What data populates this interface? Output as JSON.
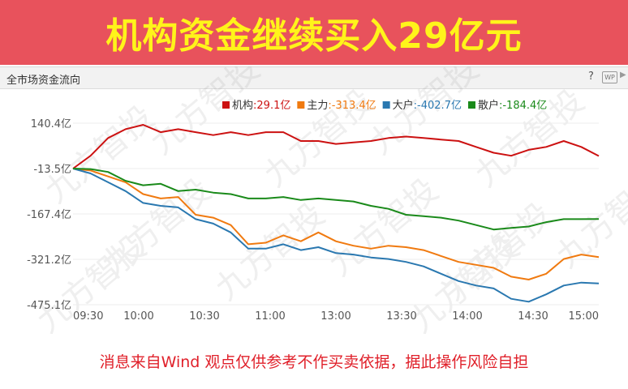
{
  "banner": {
    "title": "机构资金继续买入29亿元"
  },
  "panel": {
    "title": "全市场资金流向",
    "help": "?",
    "wp": "WP"
  },
  "footer": {
    "text": "消息来自Wind  观点仅供参考不作买卖依据，据此操作风险自担"
  },
  "watermark": "九方智投",
  "colors": {
    "banner_bg": "#e8525c",
    "banner_text": "#fff41a",
    "footer_text": "#e0202a"
  },
  "chart_data": {
    "type": "line",
    "ylim": [
      -475.1,
      140.4
    ],
    "y_ticks": [
      "140.4亿",
      "-13.5亿",
      "-167.4亿",
      "-321.2亿",
      "-475.1亿"
    ],
    "x_ticks": [
      "09:30",
      "10:00",
      "10:30",
      "11:00",
      "13:00",
      "13:30",
      "14:00",
      "14:30",
      "15:00"
    ],
    "legend_position": "top-right",
    "series": [
      {
        "name": "机构",
        "label": ":29.1亿",
        "color": "#cc1111",
        "values": [
          -13.5,
          30,
          90,
          120,
          135,
          110,
          120,
          110,
          100,
          110,
          100,
          110,
          110,
          80,
          80,
          70,
          75,
          80,
          90,
          95,
          90,
          85,
          80,
          60,
          40,
          30,
          50,
          60,
          80,
          60,
          29.1
        ]
      },
      {
        "name": "主力",
        "label": ":-313.4亿",
        "color": "#f07a10",
        "values": [
          -13.5,
          -20,
          -40,
          -60,
          -100,
          -115,
          -110,
          -170,
          -180,
          -205,
          -270,
          -265,
          -240,
          -260,
          -230,
          -260,
          -275,
          -285,
          -275,
          -280,
          -290,
          -310,
          -330,
          -340,
          -350,
          -380,
          -390,
          -370,
          -320,
          -305,
          -313.4
        ]
      },
      {
        "name": "大户",
        "label": ":-402.7亿",
        "color": "#2a78b0",
        "values": [
          -13.5,
          -30,
          -60,
          -90,
          -130,
          -140,
          -145,
          -185,
          -200,
          -230,
          -285,
          -285,
          -270,
          -290,
          -280,
          -300,
          -305,
          -315,
          -320,
          -330,
          -345,
          -370,
          -395,
          -410,
          -420,
          -455,
          -465,
          -440,
          -410,
          -400,
          -402.7
        ]
      },
      {
        "name": "散户",
        "label": ":-184.4亿",
        "color": "#1a8a1a",
        "values": [
          -13.5,
          -15,
          -25,
          -55,
          -70,
          -65,
          -90,
          -85,
          -95,
          -100,
          -115,
          -115,
          -110,
          -120,
          -115,
          -120,
          -125,
          -140,
          -150,
          -170,
          -175,
          -180,
          -190,
          -205,
          -220,
          -215,
          -210,
          -195,
          -185,
          -185,
          -184.4
        ]
      }
    ]
  }
}
